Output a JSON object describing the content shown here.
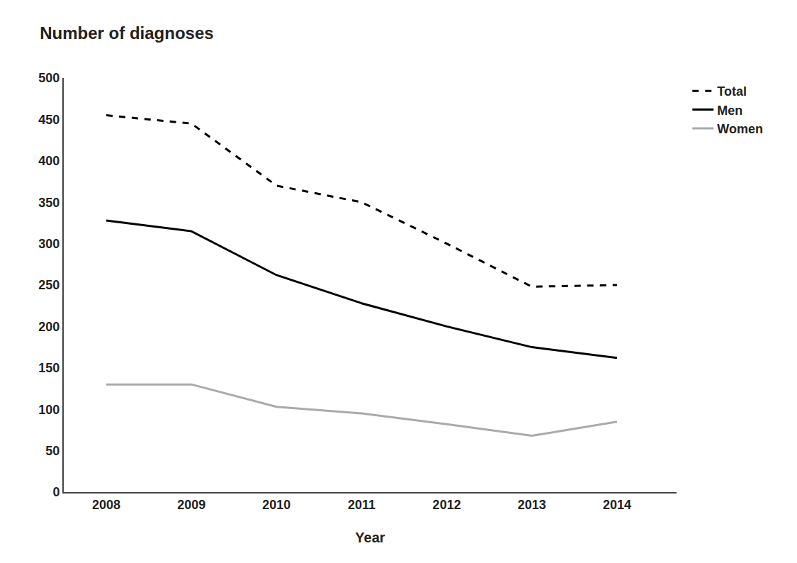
{
  "chart_data": {
    "type": "line",
    "title": "Number of diagnoses",
    "xlabel": "Year",
    "x": [
      2008,
      2009,
      2010,
      2011,
      2012,
      2013,
      2014
    ],
    "series": [
      {
        "name": "Total",
        "color": "#000000",
        "line_style": "dashed",
        "values": [
          455,
          445,
          370,
          350,
          300,
          248,
          250
        ]
      },
      {
        "name": "Men",
        "color": "#000000",
        "line_style": "solid",
        "values": [
          328,
          315,
          262,
          228,
          200,
          175,
          162
        ]
      },
      {
        "name": "Women",
        "color": "#aaaaaa",
        "line_style": "solid",
        "values": [
          130,
          130,
          103,
          95,
          82,
          68,
          85
        ]
      }
    ],
    "xlim": [
      2007.5,
      2014.7
    ],
    "xticks": [
      2008,
      2009,
      2010,
      2011,
      2012,
      2013,
      2014
    ],
    "ylim": [
      0,
      500
    ],
    "yticks": [
      0,
      50,
      100,
      150,
      200,
      250,
      300,
      350,
      400,
      450,
      500
    ],
    "grid": false,
    "legend": "upper right"
  }
}
